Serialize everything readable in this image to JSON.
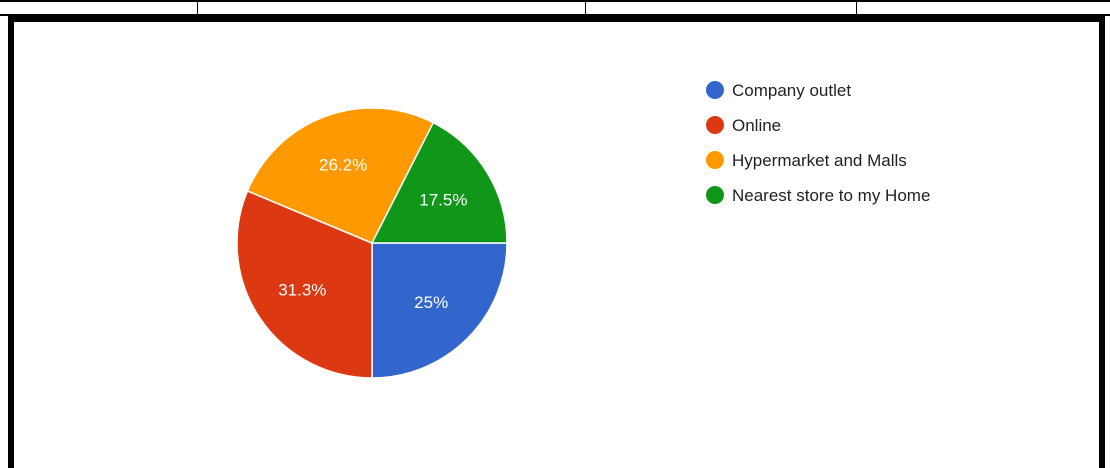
{
  "chart_data": {
    "type": "pie",
    "legend_position": "right",
    "slices": [
      {
        "label": "Company outlet",
        "value": 25,
        "display": "25%",
        "color": "#3366CC"
      },
      {
        "label": "Online",
        "value": 31.3,
        "display": "31.3%",
        "color": "#DC3912"
      },
      {
        "label": "Hypermarket and Malls",
        "value": 26.2,
        "display": "26.2%",
        "color": "#FF9900"
      },
      {
        "label": "Nearest store to my Home",
        "value": 17.5,
        "display": "17.5%",
        "color": "#109618"
      }
    ]
  }
}
